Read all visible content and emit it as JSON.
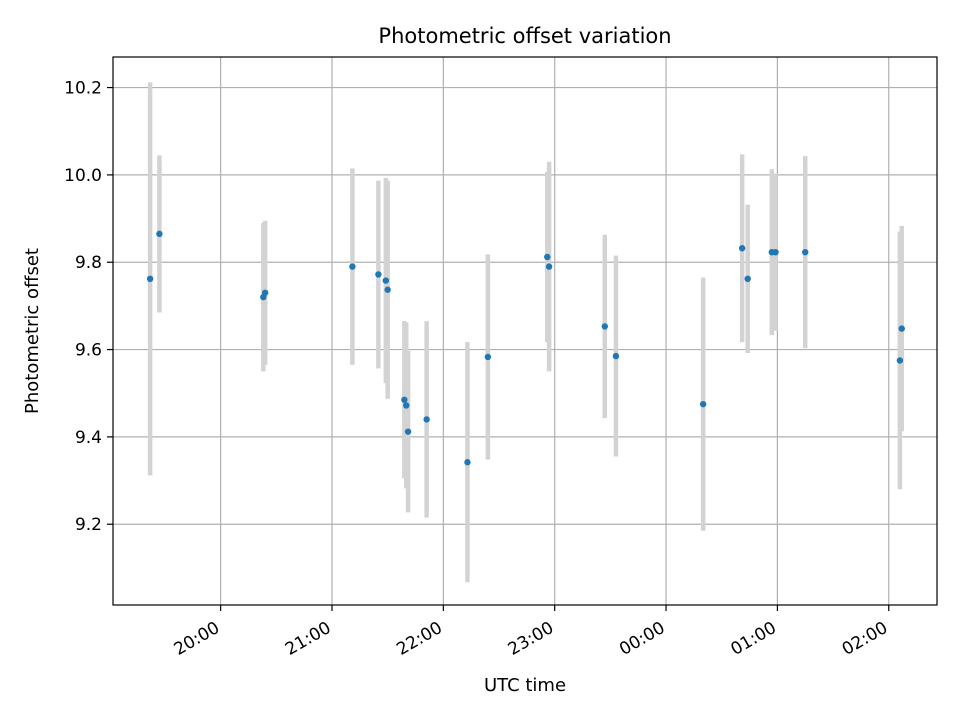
{
  "chart_data": {
    "type": "scatter",
    "title": "Photometric offset variation",
    "xlabel": "UTC time",
    "ylabel": "Photometric offset",
    "x_axis": {
      "kind": "time",
      "range": [
        "19:02",
        "02:26"
      ],
      "ticks": [
        "20:00",
        "21:00",
        "22:00",
        "23:00",
        "00:00",
        "01:00",
        "02:00"
      ]
    },
    "y_axis": {
      "range": [
        9.015,
        10.27
      ],
      "ticks": [
        9.2,
        9.4,
        9.6,
        9.8,
        10.0,
        10.2
      ],
      "tick_labels": [
        "9.2",
        "9.4",
        "9.6",
        "9.8",
        "10.0",
        "10.2"
      ]
    },
    "grid": true,
    "legend": "none",
    "colors": {
      "point": "#1f77b4",
      "errorbar": "#d3d3d3"
    },
    "points": [
      {
        "t": "19:22",
        "y": 9.762,
        "yerr": 0.45
      },
      {
        "t": "19:27",
        "y": 9.865,
        "yerr": 0.18
      },
      {
        "t": "20:23",
        "y": 9.72,
        "yerr": 0.17
      },
      {
        "t": "20:24",
        "y": 9.73,
        "yerr": 0.165
      },
      {
        "t": "21:11",
        "y": 9.79,
        "yerr": 0.225
      },
      {
        "t": "21:25",
        "y": 9.772,
        "yerr": 0.215
      },
      {
        "t": "21:29",
        "y": 9.758,
        "yerr": 0.235
      },
      {
        "t": "21:30",
        "y": 9.737,
        "yerr": 0.25
      },
      {
        "t": "21:39",
        "y": 9.485,
        "yerr": 0.18
      },
      {
        "t": "21:40",
        "y": 9.472,
        "yerr": 0.19
      },
      {
        "t": "21:41",
        "y": 9.412,
        "yerr": 0.185
      },
      {
        "t": "21:51",
        "y": 9.44,
        "yerr": 0.225
      },
      {
        "t": "22:13",
        "y": 9.342,
        "yerr": 0.275
      },
      {
        "t": "22:24",
        "y": 9.583,
        "yerr": 0.235
      },
      {
        "t": "22:56",
        "y": 9.812,
        "yerr": 0.195
      },
      {
        "t": "22:57",
        "y": 9.79,
        "yerr": 0.24
      },
      {
        "t": "23:27",
        "y": 9.653,
        "yerr": 0.21
      },
      {
        "t": "23:33",
        "y": 9.585,
        "yerr": 0.23
      },
      {
        "t": "00:20",
        "y": 9.475,
        "yerr": 0.29
      },
      {
        "t": "00:41",
        "y": 9.832,
        "yerr": 0.215
      },
      {
        "t": "00:44",
        "y": 9.762,
        "yerr": 0.17
      },
      {
        "t": "00:57",
        "y": 9.823,
        "yerr": 0.19
      },
      {
        "t": "00:59",
        "y": 9.823,
        "yerr": 0.18
      },
      {
        "t": "01:15",
        "y": 9.823,
        "yerr": 0.22
      },
      {
        "t": "02:06",
        "y": 9.575,
        "yerr": 0.295
      },
      {
        "t": "02:07",
        "y": 9.648,
        "yerr": 0.235
      }
    ]
  }
}
